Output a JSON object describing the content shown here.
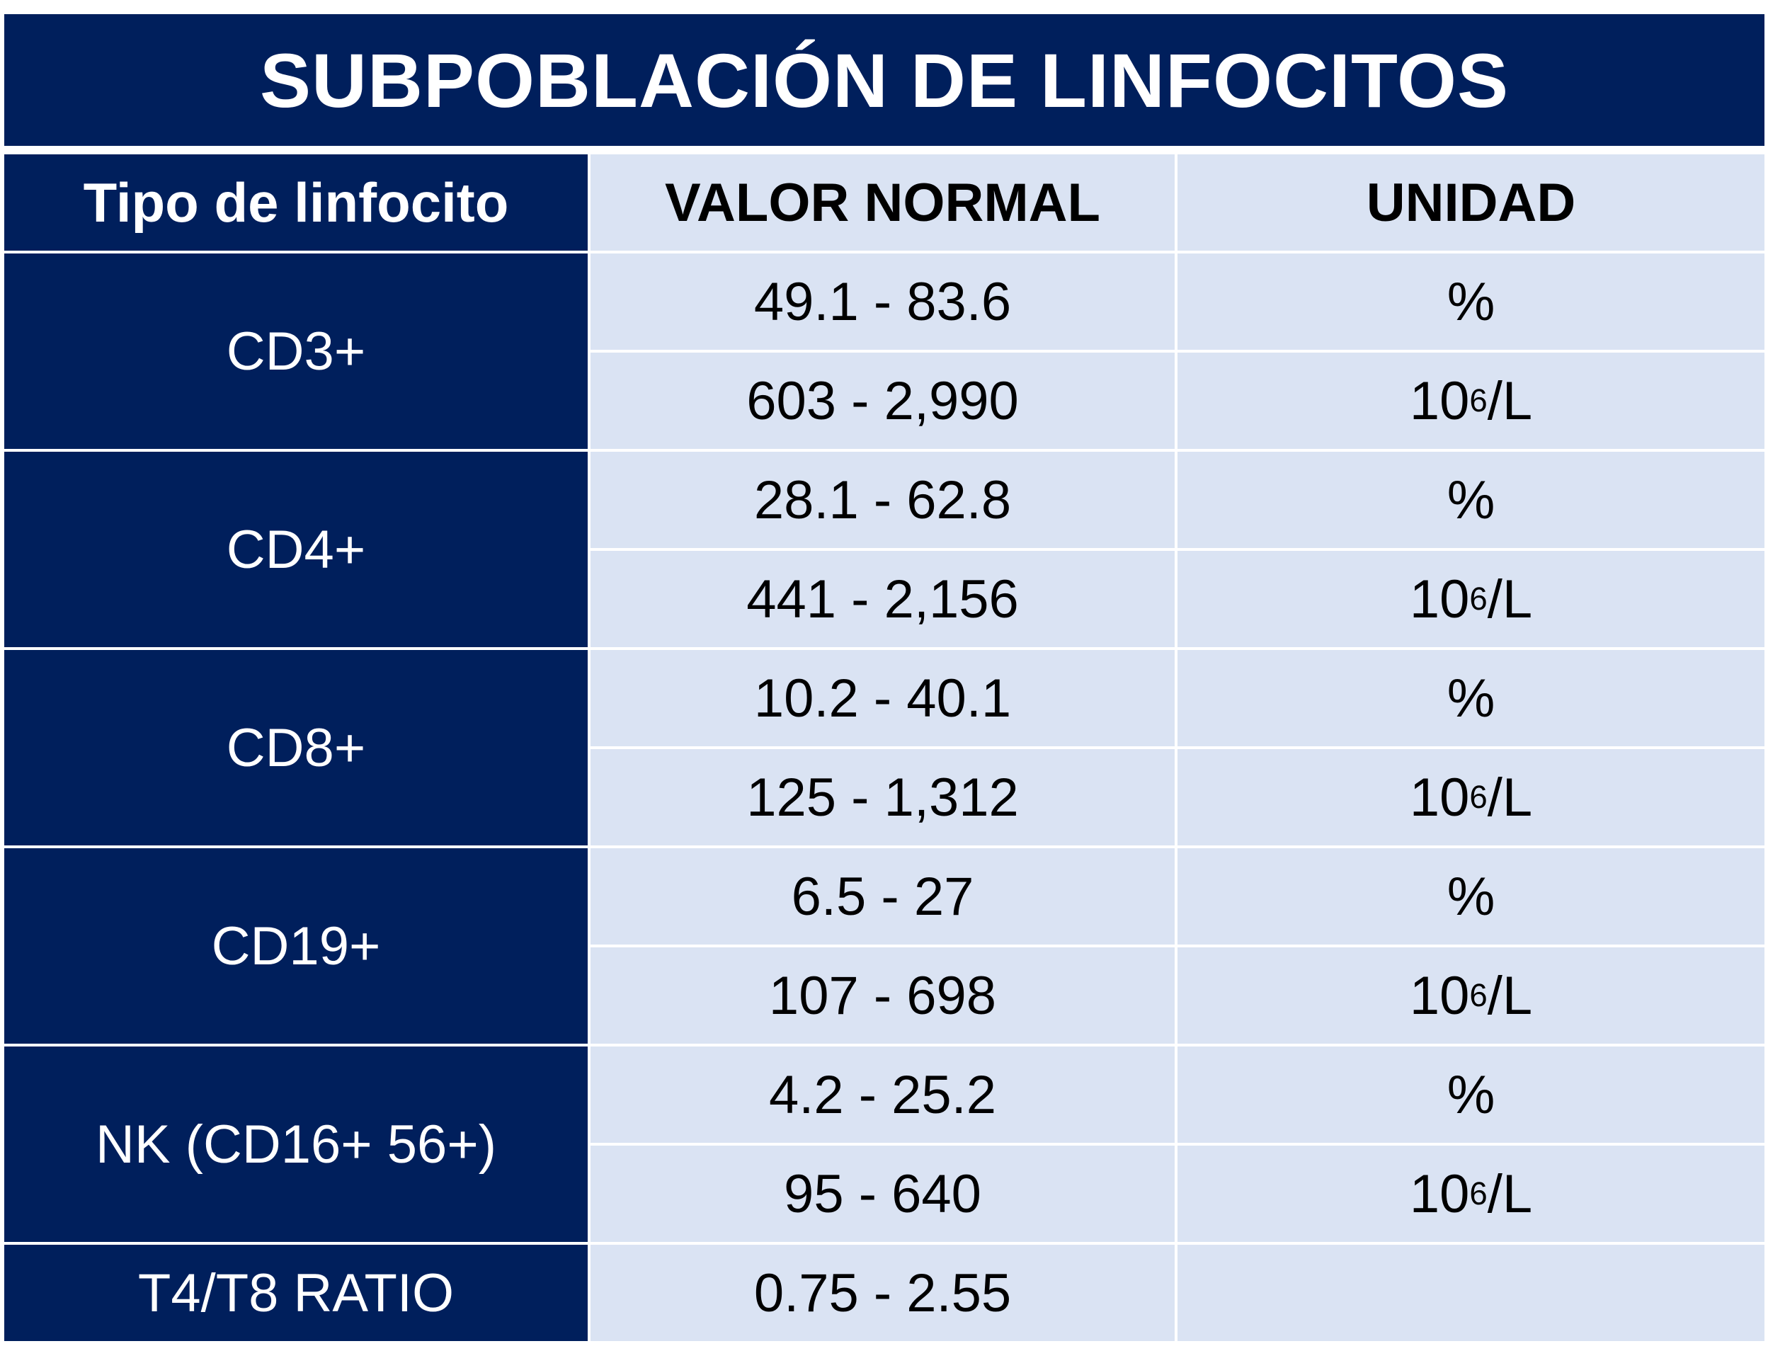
{
  "title": "SUBPOBLACIÓN DE LINFOCITOS",
  "headers": {
    "col1": "Tipo de linfocito",
    "col2": "VALOR NORMAL",
    "col3": "UNIDAD"
  },
  "groups": [
    {
      "name": "CD3+",
      "rows": [
        {
          "value": "49.1 - 83.6",
          "unit_base": "%",
          "unit_sup": "",
          "unit_suffix": ""
        },
        {
          "value": "603 - 2,990",
          "unit_base": "10",
          "unit_sup": "6",
          "unit_suffix": "/L"
        }
      ]
    },
    {
      "name": "CD4+",
      "rows": [
        {
          "value": "28.1 - 62.8",
          "unit_base": "%",
          "unit_sup": "",
          "unit_suffix": ""
        },
        {
          "value": "441 - 2,156",
          "unit_base": "10",
          "unit_sup": "6",
          "unit_suffix": "/L"
        }
      ]
    },
    {
      "name": "CD8+",
      "rows": [
        {
          "value": "10.2 - 40.1",
          "unit_base": "%",
          "unit_sup": "",
          "unit_suffix": ""
        },
        {
          "value": "125 - 1,312",
          "unit_base": "10",
          "unit_sup": "6",
          "unit_suffix": "/L"
        }
      ]
    },
    {
      "name": "CD19+",
      "rows": [
        {
          "value": "6.5 - 27",
          "unit_base": "%",
          "unit_sup": "",
          "unit_suffix": ""
        },
        {
          "value": "107 - 698",
          "unit_base": "10",
          "unit_sup": "6",
          "unit_suffix": "/L"
        }
      ]
    },
    {
      "name": "NK (CD16+ 56+)",
      "rows": [
        {
          "value": "4.2 - 25.2",
          "unit_base": "%",
          "unit_sup": "",
          "unit_suffix": ""
        },
        {
          "value": "95 - 640",
          "unit_base": "10",
          "unit_sup": "6",
          "unit_suffix": "/L"
        }
      ]
    }
  ],
  "ratio": {
    "name": "T4/T8 RATIO",
    "value": "0.75 - 2.55",
    "unit": ""
  },
  "colors": {
    "dark": "#001f5c",
    "light": "#dae3f3"
  }
}
